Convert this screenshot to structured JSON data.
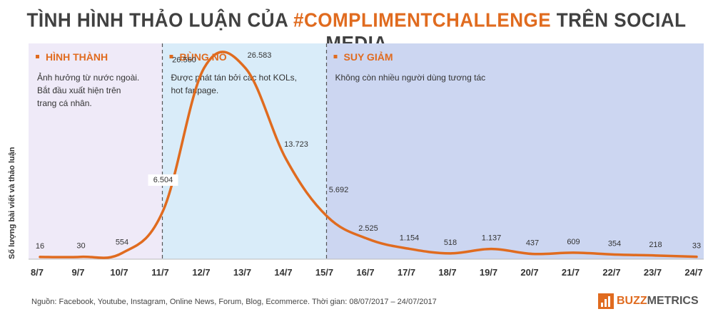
{
  "title": {
    "prefix": "TÌNH HÌNH THẢO LUẬN CỦA ",
    "highlight": "#COMPLIMENTCHALLENGE",
    "suffix": "  TRÊN SOCIAL MEDIA"
  },
  "phases": [
    {
      "name": "HÌNH THÀNH",
      "desc": [
        "Ảnh hưởng từ nước ngoài.",
        "Bắt đầu xuất hiện trên",
        "trang cá nhân."
      ],
      "color": "#efeaf8",
      "from_index": 0,
      "to_index": 3
    },
    {
      "name": "BÙNG NỔ",
      "desc": [
        "Được phát tán bởi các hot KOLs,",
        "hot fanpage."
      ],
      "color": "#d9ecf9",
      "from_index": 3,
      "to_index": 7
    },
    {
      "name": "SUY GIẢM",
      "desc": [
        "Không còn nhiều người dùng tương tác"
      ],
      "color": "#ccd6f1",
      "from_index": 7,
      "to_index": 16
    }
  ],
  "chart_data": {
    "type": "line",
    "categories": [
      "8/7",
      "9/7",
      "10/7",
      "11/7",
      "12/7",
      "13/7",
      "14/7",
      "15/7",
      "16/7",
      "17/7",
      "18/7",
      "19/7",
      "20/7",
      "21/7",
      "22/7",
      "23/7",
      "24/7"
    ],
    "values": [
      16,
      30,
      554,
      6504,
      26560,
      26583,
      13723,
      5692,
      2525,
      1154,
      518,
      1137,
      437,
      609,
      354,
      218,
      33
    ],
    "value_labels": [
      "16",
      "30",
      "554",
      "6.504",
      "26.560",
      "26.583",
      "13.723",
      "5.692",
      "2.525",
      "1.154",
      "518",
      "1.137",
      "437",
      "609",
      "354",
      "218",
      "33"
    ],
    "ylabel": "Số lượng bài viết và thảo luận",
    "xlabel": "",
    "ylim": [
      0,
      30000
    ],
    "line_color": "#e06b1f"
  },
  "footer": "Nguồn: Facebook, Youtube, Instagram, Online News, Forum, Blog, Ecommerce. Thời gian: 08/07/2017 – 24/07/2017",
  "logo": {
    "a": "BUZZ",
    "b": "METRICS"
  }
}
